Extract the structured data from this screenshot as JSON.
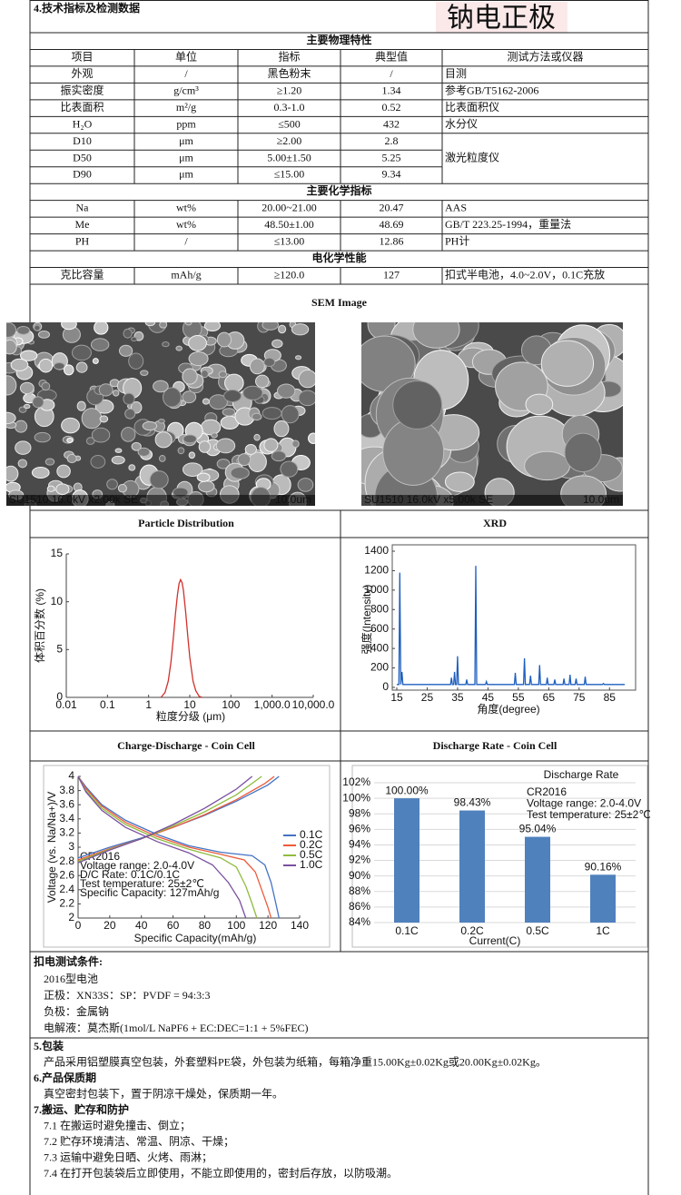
{
  "header": {
    "section_title": "4.技术指标及检测数据",
    "stamp": "钠电正极"
  },
  "tables": [
    {
      "title": "主要物理特性",
      "columns": [
        "项目",
        "单位",
        "指标",
        "典型值",
        "测试方法或仪器"
      ],
      "rows": [
        [
          "外观",
          "/",
          "黑色粉末",
          "/",
          "目测"
        ],
        [
          "振实密度",
          "g/cm³",
          "≥1.20",
          1.34,
          "参考GB/T5162-2006"
        ],
        [
          "比表面积",
          "m²/g",
          "0.3-1.0",
          0.52,
          "比表面积仪"
        ],
        [
          "H₂O",
          "ppm",
          "≤500",
          432,
          "水分仪"
        ],
        [
          "D10",
          "μm",
          "≥2.00",
          2.8,
          "激光粒度仪"
        ],
        [
          "D50",
          "μm",
          "5.00±1.50",
          5.25
        ],
        [
          "D90",
          "μm",
          "≤15.00",
          9.34
        ]
      ]
    },
    {
      "title": "主要化学指标",
      "rows": [
        [
          "Na",
          "wt%",
          "20.00~21.00",
          20.47,
          "AAS"
        ],
        [
          "Me",
          "wt%",
          "48.50±1.00",
          48.69,
          "GB/T 223.25-1994，重量法"
        ],
        [
          "PH",
          "/",
          "≤13.00",
          12.86,
          "PH计"
        ]
      ]
    },
    {
      "title": "电化学性能",
      "rows": [
        [
          "克比容量",
          "mAh/g",
          "≥120.0",
          127,
          "扣式半电池，4.0~2.0V，0.1C充放"
        ]
      ]
    }
  ],
  "sem": {
    "title": "SEM Image",
    "images": [
      {
        "caption": "SU1510 16.0kV x2.00k SE",
        "scale": "10.0um"
      },
      {
        "caption": "SU1510 16.0kV x5.00k SE",
        "scale": "10.0um"
      }
    ]
  },
  "chart_data": [
    {
      "type": "line",
      "title": "Particle Distribution",
      "xlabel": "粒度分级 (μm)",
      "ylabel": "体积百分数 (%)",
      "xscale": "log",
      "xlim": [
        0.01,
        10000
      ],
      "xticks": [
        0.01,
        0.1,
        1,
        10,
        100,
        {
          "value": 1000,
          "label": "1,000.0"
        },
        {
          "value": 10000,
          "label": "10,000.0"
        }
      ],
      "ylim": [
        0,
        15
      ],
      "yticks": [
        0,
        5,
        10,
        15
      ],
      "color": "#d0312d",
      "x": [
        2,
        2.5,
        3,
        3.5,
        4,
        4.5,
        5,
        5.5,
        6,
        6.5,
        7,
        8,
        9,
        10,
        12,
        14,
        17,
        20
      ],
      "values": [
        0,
        0.5,
        1.7,
        3.7,
        6.3,
        8.8,
        10.7,
        11.9,
        12.3,
        12,
        11.2,
        8.8,
        6.3,
        4.2,
        1.7,
        0.7,
        0.1,
        0
      ]
    },
    {
      "type": "line",
      "title": "XRD",
      "xlabel": "角度(degree)",
      "ylabel": "强度(Intensity)",
      "xlim": [
        15,
        90
      ],
      "xticks": [
        15,
        25,
        35,
        45,
        55,
        65,
        75,
        85
      ],
      "ylim": [
        0,
        1400
      ],
      "yticks": [
        0,
        200,
        400,
        600,
        800,
        1000,
        1200,
        1400
      ],
      "color": "#1f5fbf",
      "x": [
        15,
        15.7,
        16,
        16.3,
        16.7,
        17,
        32.7,
        33,
        33.3,
        33.7,
        34,
        34.3,
        34.7,
        35,
        35.3,
        37.7,
        38,
        38.3,
        40.7,
        41,
        41.3,
        44.2,
        44.5,
        44.8,
        53.7,
        54,
        54.3,
        56.7,
        57,
        57.3,
        58.7,
        59,
        59.3,
        61.7,
        62,
        62.3,
        64.2,
        64.5,
        64.8,
        66.7,
        67,
        67.3,
        69.7,
        70,
        70.3,
        71.7,
        72,
        72.3,
        73.7,
        74,
        74.3,
        76.7,
        77,
        77.3,
        82.7,
        83,
        83.3,
        90
      ],
      "values": [
        30,
        30,
        1180,
        30,
        160,
        30,
        30,
        100,
        30,
        30,
        160,
        30,
        30,
        320,
        30,
        30,
        80,
        30,
        30,
        1250,
        30,
        30,
        60,
        30,
        30,
        150,
        30,
        30,
        300,
        30,
        30,
        120,
        30,
        30,
        230,
        30,
        30,
        100,
        30,
        30,
        80,
        30,
        30,
        90,
        30,
        30,
        130,
        30,
        30,
        90,
        30,
        30,
        110,
        30,
        30,
        40,
        30,
        30
      ]
    },
    {
      "type": "line",
      "title": "Charge-Discharge - Coin Cell",
      "xlabel": "Specific Capacity(mAh/g)",
      "ylabel": "Voltage (vs. Na/Na+)/V",
      "xlim": [
        0,
        140
      ],
      "xticks": [
        0,
        20,
        40,
        60,
        80,
        100,
        120,
        140
      ],
      "ylim": [
        2,
        4
      ],
      "yticks": [
        2,
        2.2,
        2.4,
        2.6,
        2.8,
        3,
        3.2,
        3.4,
        3.6,
        3.8,
        4
      ],
      "annotations": [
        "CR2016",
        "Voltage range: 2.0-4.0V",
        "D/C Rate: 0.1C/0.1C",
        "Test temperature: 25±2℃",
        "Specific Capacity: 127mAh/g"
      ],
      "series": [
        {
          "name": "0.1C",
          "color": "#4472c4",
          "x": [
            0,
            20,
            40,
            60,
            80,
            100,
            120,
            127,
            null,
            0,
            5,
            15,
            30,
            50,
            70,
            90,
            110,
            118,
            122,
            125,
            127
          ],
          "values": [
            2.85,
            3.0,
            3.13,
            3.28,
            3.45,
            3.65,
            3.88,
            4.0,
            null,
            4.0,
            3.85,
            3.6,
            3.38,
            3.18,
            3.02,
            2.93,
            2.88,
            2.75,
            2.5,
            2.2,
            2.0
          ]
        },
        {
          "name": "0.2C",
          "color": "#ed5a3a",
          "x": [
            0,
            20,
            40,
            60,
            80,
            100,
            118,
            124,
            null,
            0,
            5,
            15,
            30,
            50,
            70,
            90,
            105,
            112,
            116,
            120,
            122
          ],
          "values": [
            2.82,
            2.98,
            3.12,
            3.28,
            3.46,
            3.67,
            3.9,
            4.0,
            null,
            4.0,
            3.83,
            3.58,
            3.35,
            3.15,
            3.0,
            2.9,
            2.82,
            2.65,
            2.4,
            2.15,
            2.0
          ]
        },
        {
          "name": "0.5C",
          "color": "#8fbc3f",
          "x": [
            0,
            20,
            40,
            60,
            80,
            100,
            116,
            null,
            0,
            5,
            15,
            30,
            50,
            70,
            90,
            100,
            106,
            110,
            113
          ],
          "values": [
            2.8,
            2.97,
            3.12,
            3.3,
            3.5,
            3.74,
            4.0,
            null,
            4.0,
            3.8,
            3.55,
            3.32,
            3.12,
            2.97,
            2.85,
            2.72,
            2.45,
            2.2,
            2.0
          ]
        },
        {
          "name": "1.0C",
          "color": "#7a4fa0",
          "x": [
            0,
            20,
            40,
            60,
            80,
            100,
            110,
            null,
            0,
            5,
            15,
            30,
            50,
            70,
            85,
            95,
            102,
            106
          ],
          "values": [
            2.78,
            2.96,
            3.12,
            3.32,
            3.55,
            3.82,
            4.0,
            null,
            4.0,
            3.78,
            3.52,
            3.28,
            3.08,
            2.92,
            2.75,
            2.5,
            2.25,
            2.0
          ]
        }
      ]
    },
    {
      "type": "bar",
      "title": "Discharge Rate - Coin Cell",
      "subtitle": "Discharge Rate",
      "xlabel": "Current(C)",
      "annotations": [
        "CR2016",
        "Voltage range: 2.0-4.0V",
        "Test temperature: 25±2℃"
      ],
      "categories": [
        "0.1C",
        "0.2C",
        "0.5C",
        "1C"
      ],
      "values": [
        100,
        98.43,
        95.04,
        90.16
      ],
      "value_labels": [
        "100.00%",
        "98.43%",
        "95.04%",
        "90.16%"
      ],
      "color": "#4f81bd",
      "ylim": [
        84,
        102
      ],
      "grid": true,
      "yticks": [
        {
          "value": 84,
          "label": "84%"
        },
        {
          "value": 86,
          "label": "86%"
        },
        {
          "value": 88,
          "label": "88%"
        },
        {
          "value": 90,
          "label": "90%"
        },
        {
          "value": 92,
          "label": "92%"
        },
        {
          "value": 94,
          "label": "94%"
        },
        {
          "value": 96,
          "label": "96%"
        },
        {
          "value": 98,
          "label": "98%"
        },
        {
          "value": 100,
          "label": "100%"
        },
        {
          "value": 102,
          "label": "102%"
        }
      ]
    }
  ],
  "test_conditions": {
    "title": "扣电测试条件:",
    "lines": [
      "2016型电池",
      "正极：XN33S：SP：PVDF = 94:3:3",
      "负极：金属钠",
      "电解液：莫杰斯(1mol/L NaPF6 + EC:DEC=1:1 + 5%FEC)"
    ]
  },
  "sections": [
    {
      "title": "5.包装",
      "lines": [
        "产品采用铝塑膜真空包装，外套塑料PE袋，外包装为纸箱，每箱净重15.00Kg±0.02Kg或20.00Kg±0.02Kg。"
      ]
    },
    {
      "title": "6.产品保质期",
      "lines": [
        "真空密封包装下，置于阴凉干燥处，保质期一年。"
      ]
    },
    {
      "title": "7.搬运、贮存和防护",
      "lines": [
        "7.1 在搬运时避免撞击、倒立；",
        "7.2 贮存环境清洁、常温、阴凉、干燥；",
        "7.3 运输中避免日晒、火烤、雨淋；",
        "7.4 在打开包装袋后立即使用，不能立即使用的，密封后存放，以防吸潮。"
      ]
    }
  ]
}
